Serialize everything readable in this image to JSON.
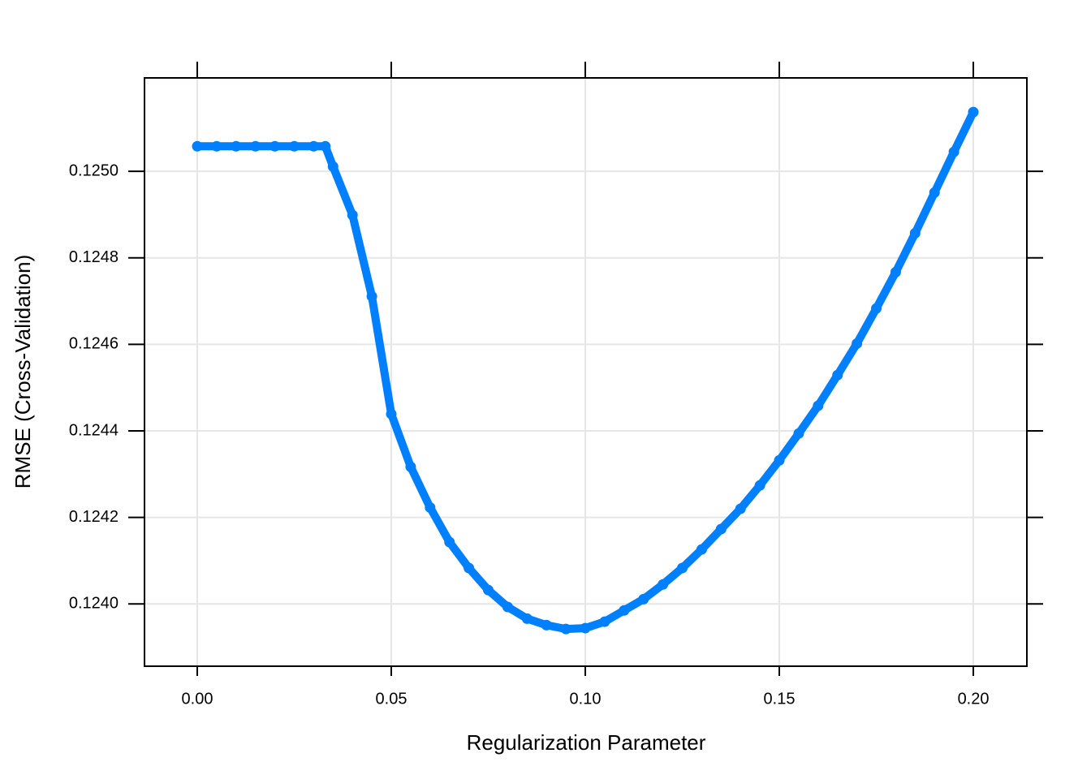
{
  "chart_data": {
    "type": "scatter",
    "xlabel": "Regularization Parameter",
    "ylabel": "RMSE (Cross-Validation)",
    "color": "#0080ff",
    "grid": true,
    "x": [
      0,
      0.005,
      0.01,
      0.015,
      0.02,
      0.025,
      0.03,
      0.033,
      0.035,
      0.04,
      0.045,
      0.05,
      0.055,
      0.06,
      0.065,
      0.07,
      0.075,
      0.08,
      0.085,
      0.09,
      0.095,
      0.1,
      0.105,
      0.11,
      0.115,
      0.12,
      0.125,
      0.13,
      0.135,
      0.14,
      0.145,
      0.15,
      0.155,
      0.16,
      0.165,
      0.17,
      0.175,
      0.18,
      0.185,
      0.19,
      0.195,
      0.2
    ],
    "values": [
      0.125058,
      0.125058,
      0.125058,
      0.125058,
      0.125058,
      0.125058,
      0.125058,
      0.125058,
      0.125011,
      0.124899,
      0.124711,
      0.124439,
      0.124317,
      0.124223,
      0.124143,
      0.124083,
      0.124032,
      0.123993,
      0.123966,
      0.123951,
      0.123942,
      0.123944,
      0.123959,
      0.123985,
      0.124011,
      0.124045,
      0.124083,
      0.124126,
      0.124173,
      0.12422,
      0.124274,
      0.124332,
      0.124394,
      0.124458,
      0.124529,
      0.124602,
      0.124683,
      0.124767,
      0.124857,
      0.124951,
      0.125045,
      0.125137
    ],
    "xlim": [
      -0.0136,
      0.2138
    ],
    "ylim": [
      0.123856,
      0.125216
    ],
    "xticks": [
      {
        "value": 0,
        "label": "0.00"
      },
      0.05,
      {
        "value": 0.1,
        "label": "0.10"
      },
      0.15,
      {
        "value": 0.2,
        "label": "0.20"
      }
    ],
    "yticks": [
      {
        "value": 0.124,
        "label": "0.1240"
      },
      0.1242,
      0.1244,
      0.1246,
      0.1248,
      {
        "value": 0.125,
        "label": "0.1250"
      }
    ]
  }
}
